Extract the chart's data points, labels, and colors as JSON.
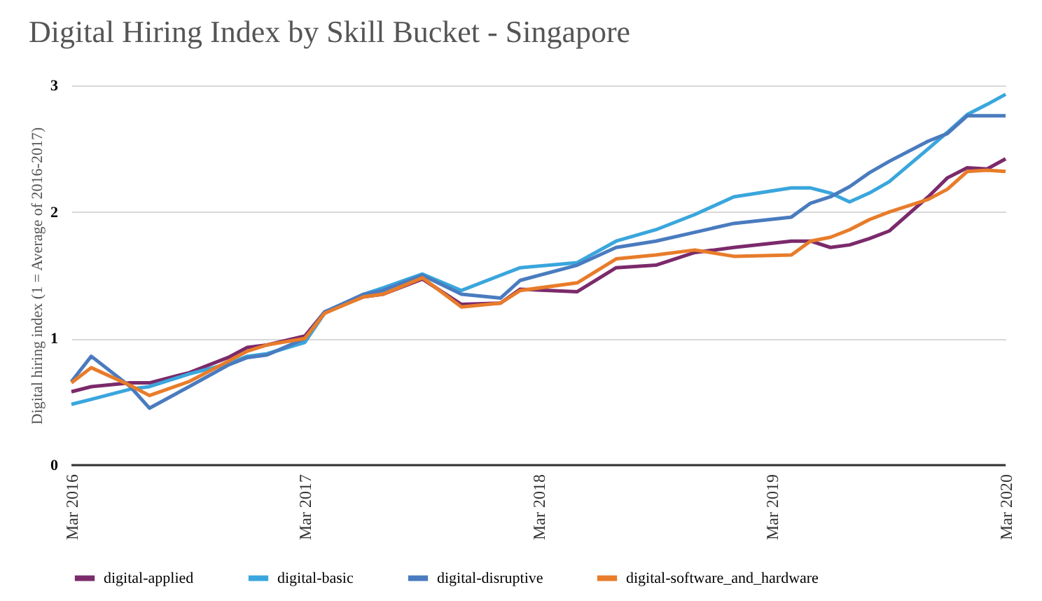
{
  "chart_data": {
    "type": "line",
    "title": "Digital Hiring Index by Skill Bucket - Singapore",
    "ylabel": "Digital hiring index (1 = Average of 2016-2017)",
    "x": [
      "2016-03",
      "2016-04",
      "2016-06",
      "2016-07",
      "2016-09",
      "2016-11",
      "2016-12",
      "2017-01",
      "2017-03",
      "2017-04",
      "2017-06",
      "2017-07",
      "2017-09",
      "2017-11",
      "2018-01",
      "2018-02",
      "2018-05",
      "2018-07",
      "2018-09",
      "2018-11",
      "2019-01",
      "2019-04",
      "2019-05",
      "2019-06",
      "2019-07",
      "2019-08",
      "2019-09",
      "2019-11",
      "2019-12",
      "2020-01",
      "2020-02",
      "2020-03"
    ],
    "series": [
      {
        "name": "digital-applied",
        "color": "#7b2a6b",
        "values": [
          0.58,
          0.62,
          0.65,
          0.65,
          0.73,
          0.85,
          0.93,
          0.95,
          1.02,
          1.21,
          1.33,
          1.35,
          1.47,
          1.27,
          1.28,
          1.39,
          1.37,
          1.56,
          1.58,
          1.68,
          1.72,
          1.77,
          1.77,
          1.72,
          1.74,
          1.79,
          1.85,
          2.12,
          2.27,
          2.35,
          2.34,
          2.42
        ]
      },
      {
        "name": "digital-basic",
        "color": "#3aa6dd",
        "values": [
          0.48,
          0.52,
          0.6,
          0.62,
          0.72,
          0.8,
          0.86,
          0.88,
          0.97,
          1.2,
          1.35,
          1.4,
          1.51,
          1.38,
          1.5,
          1.56,
          1.6,
          1.77,
          1.86,
          1.98,
          2.12,
          2.19,
          2.19,
          2.15,
          2.08,
          2.15,
          2.24,
          2.5,
          2.63,
          2.77,
          2.85,
          2.93
        ]
      },
      {
        "name": "digital-disruptive",
        "color": "#4a7bbf",
        "values": [
          0.66,
          0.86,
          0.62,
          0.45,
          0.62,
          0.79,
          0.85,
          0.87,
          1.0,
          1.21,
          1.35,
          1.38,
          1.5,
          1.35,
          1.32,
          1.46,
          1.58,
          1.72,
          1.77,
          1.84,
          1.91,
          1.96,
          2.07,
          2.12,
          2.2,
          2.31,
          2.4,
          2.56,
          2.62,
          2.76,
          2.76,
          2.76
        ]
      },
      {
        "name": "digital-software_and_hardware",
        "color": "#e87c2a",
        "values": [
          0.65,
          0.77,
          0.63,
          0.55,
          0.66,
          0.82,
          0.9,
          0.95,
          1.0,
          1.2,
          1.33,
          1.35,
          1.48,
          1.25,
          1.28,
          1.38,
          1.44,
          1.63,
          1.66,
          1.7,
          1.65,
          1.66,
          1.77,
          1.8,
          1.86,
          1.94,
          2.0,
          2.1,
          2.18,
          2.32,
          2.33,
          2.32
        ]
      }
    ],
    "xlim": [
      "2016-03",
      "2020-03"
    ],
    "xticks": [
      {
        "value": "2016-03",
        "label": "Mar 2016"
      },
      {
        "value": "2017-03",
        "label": "Mar 2017"
      },
      {
        "value": "2018-03",
        "label": "Mar 2018"
      },
      {
        "value": "2019-03",
        "label": "Mar 2019"
      },
      {
        "value": "2020-03",
        "label": "Mar 2020"
      }
    ],
    "ylim": [
      0,
      3
    ],
    "yticks": [
      0,
      1,
      2,
      3
    ],
    "grid": "y",
    "legend": "bottom",
    "marker": "none",
    "line_style": "solid"
  }
}
